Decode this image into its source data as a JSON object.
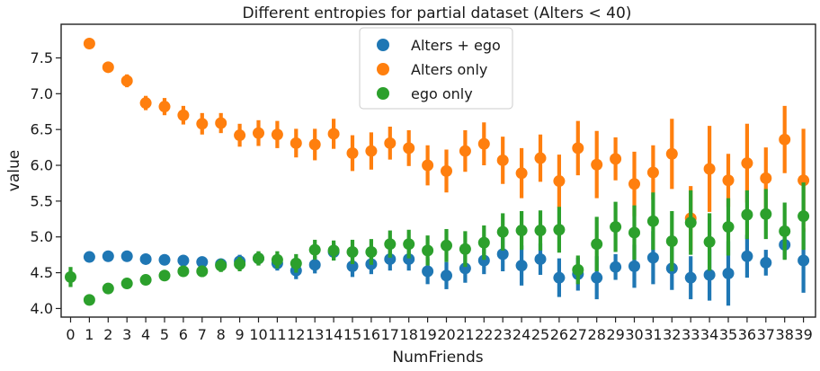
{
  "chart_data": {
    "type": "scatter",
    "title": "Different entropies for partial dataset (Alters < 40)",
    "xlabel": "NumFriends",
    "ylabel": "value",
    "categories": [
      "0",
      "1",
      "2",
      "3",
      "4",
      "5",
      "6",
      "7",
      "8",
      "9",
      "10",
      "11",
      "12",
      "13",
      "14",
      "15",
      "16",
      "17",
      "18",
      "19",
      "20",
      "21",
      "22",
      "23",
      "24",
      "25",
      "26",
      "27",
      "28",
      "29",
      "30",
      "31",
      "32",
      "33",
      "34",
      "35",
      "36",
      "37",
      "38",
      "39"
    ],
    "yticks": [
      "4.0",
      "4.5",
      "5.0",
      "5.5",
      "6.0",
      "6.5",
      "7.0",
      "7.5"
    ],
    "ylim": [
      3.88,
      7.97
    ],
    "legend_position": "upper center",
    "error_bars": true,
    "series": [
      {
        "name": "Alters + ego",
        "color": "#1f77b4",
        "values": [
          null,
          4.72,
          4.73,
          4.73,
          4.69,
          4.68,
          4.67,
          4.65,
          4.62,
          4.66,
          4.7,
          4.63,
          4.53,
          4.61,
          4.79,
          4.59,
          4.62,
          4.69,
          4.69,
          4.52,
          4.46,
          4.56,
          4.67,
          4.76,
          4.6,
          4.69,
          4.43,
          4.48,
          4.43,
          4.58,
          4.59,
          4.71,
          4.56,
          4.43,
          4.47,
          4.49,
          4.73,
          4.64,
          4.89,
          4.67
        ],
        "err": [
          null,
          0.03,
          0.04,
          0.04,
          0.05,
          0.05,
          0.06,
          0.07,
          0.07,
          0.09,
          0.09,
          0.1,
          0.12,
          0.12,
          0.12,
          0.15,
          0.14,
          0.16,
          0.16,
          0.18,
          0.19,
          0.2,
          0.19,
          0.24,
          0.28,
          0.22,
          0.27,
          0.23,
          0.3,
          0.18,
          0.3,
          0.37,
          0.3,
          0.3,
          0.36,
          0.45,
          0.3,
          0.18,
          0.2,
          0.45
        ]
      },
      {
        "name": "Alters only",
        "color": "#ff7f0e",
        "values": [
          null,
          7.7,
          7.37,
          7.18,
          6.87,
          6.82,
          6.7,
          6.58,
          6.59,
          6.42,
          6.45,
          6.43,
          6.31,
          6.29,
          6.44,
          6.17,
          6.2,
          6.31,
          6.24,
          6.0,
          5.92,
          6.2,
          6.3,
          6.07,
          5.89,
          6.1,
          5.78,
          6.24,
          6.01,
          6.09,
          5.74,
          5.9,
          6.16,
          5.26,
          5.95,
          5.79,
          6.03,
          5.82,
          6.36,
          5.79
        ],
        "err": [
          null,
          0.06,
          0.06,
          0.09,
          0.1,
          0.12,
          0.13,
          0.15,
          0.14,
          0.16,
          0.18,
          0.19,
          0.2,
          0.22,
          0.21,
          0.25,
          0.26,
          0.23,
          0.25,
          0.28,
          0.3,
          0.29,
          0.3,
          0.33,
          0.35,
          0.33,
          0.37,
          0.38,
          0.47,
          0.3,
          0.45,
          0.38,
          0.49,
          0.45,
          0.6,
          0.37,
          0.55,
          0.43,
          0.47,
          0.72
        ]
      },
      {
        "name": "ego only",
        "color": "#2ca02c",
        "values": [
          4.44,
          4.12,
          4.28,
          4.35,
          4.4,
          4.46,
          4.52,
          4.52,
          4.6,
          4.62,
          4.7,
          4.68,
          4.63,
          4.82,
          4.81,
          4.79,
          4.79,
          4.9,
          4.9,
          4.81,
          4.88,
          4.83,
          4.92,
          5.07,
          5.09,
          5.09,
          5.1,
          4.54,
          4.9,
          5.14,
          5.06,
          5.22,
          4.94,
          5.2,
          4.93,
          5.14,
          5.31,
          5.32,
          5.08,
          5.29
        ],
        "err": [
          0.14,
          0.03,
          0.04,
          0.05,
          0.06,
          0.07,
          0.07,
          0.08,
          0.09,
          0.1,
          0.1,
          0.12,
          0.13,
          0.14,
          0.14,
          0.17,
          0.18,
          0.19,
          0.2,
          0.21,
          0.23,
          0.25,
          0.24,
          0.26,
          0.27,
          0.28,
          0.32,
          0.2,
          0.38,
          0.35,
          0.38,
          0.4,
          0.42,
          0.45,
          0.4,
          0.4,
          0.34,
          0.35,
          0.4,
          0.47
        ]
      }
    ]
  }
}
